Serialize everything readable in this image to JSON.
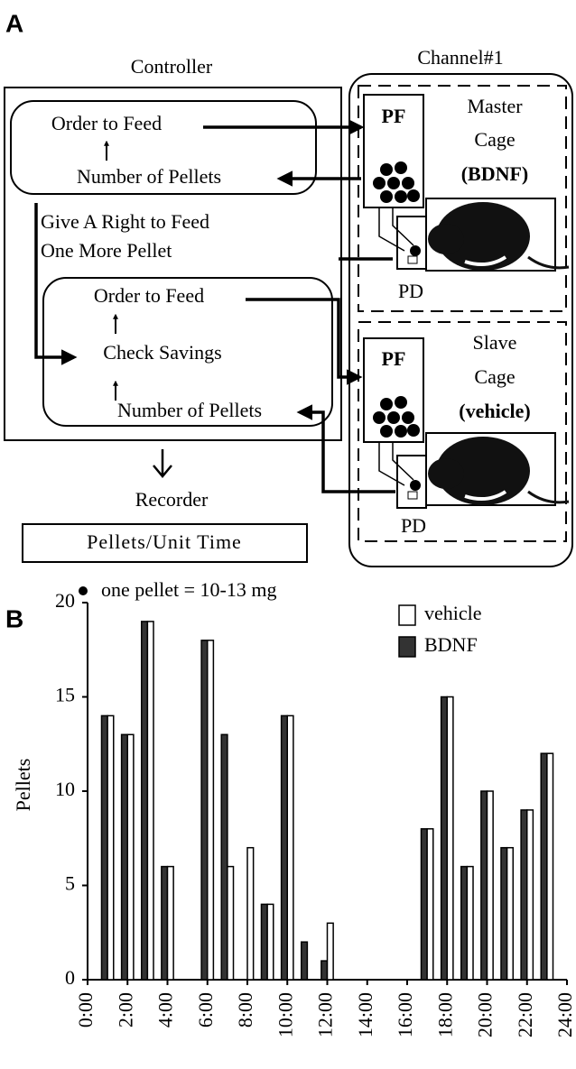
{
  "panel_a": {
    "label": "A",
    "controller": {
      "title": "Controller",
      "order_to_feed": "Order to Feed",
      "number_of_pellets": "Number of Pellets",
      "give_right_line1": "Give A Right to Feed",
      "give_right_line2": "One More Pellet",
      "order_to_feed_2": "Order to Feed",
      "check_savings": "Check Savings",
      "number_of_pellets_2": "Number of Pellets"
    },
    "recorder": {
      "title": "Recorder",
      "box": "Pellets/Unit Time"
    },
    "note": "one pellet = 10-13 mg",
    "channel": {
      "title": "Channel#1",
      "master": {
        "pf": "PF",
        "line1": "Master",
        "line2": "Cage",
        "line3": "(BDNF)",
        "pd": "PD"
      },
      "slave": {
        "pf": "PF",
        "line1": "Slave",
        "line2": "Cage",
        "line3": "(vehicle)",
        "pd": "PD"
      }
    }
  },
  "panel_b_label": "B",
  "chart_data": {
    "type": "bar",
    "y_label": "Pellets",
    "x": [
      1,
      2,
      3,
      4,
      6,
      7,
      8,
      9,
      10,
      11,
      12,
      17,
      18,
      19,
      20,
      21,
      22,
      23
    ],
    "series": [
      {
        "name": "BDNF",
        "color": "#333333",
        "values": [
          14,
          13,
          19,
          6,
          18,
          13,
          0,
          4,
          14,
          2,
          1,
          8,
          15,
          6,
          10,
          7,
          9,
          12
        ]
      },
      {
        "name": "vehicle",
        "color": "#ffffff",
        "values": [
          14,
          13,
          19,
          6,
          18,
          6,
          7,
          4,
          14,
          0,
          3,
          8,
          15,
          6,
          10,
          7,
          9,
          12
        ]
      }
    ],
    "xlim": [
      0,
      24
    ],
    "xticks": [
      {
        "value": 0,
        "label": "0:00"
      },
      {
        "value": 2,
        "label": "2:00"
      },
      {
        "value": 4,
        "label": "4:00"
      },
      {
        "value": 6,
        "label": "6:00"
      },
      {
        "value": 8,
        "label": "8:00"
      },
      {
        "value": 10,
        "label": "10:00"
      },
      {
        "value": 12,
        "label": "12:00"
      },
      {
        "value": 14,
        "label": "14:00"
      },
      {
        "value": 16,
        "label": "16:00"
      },
      {
        "value": 18,
        "label": "18:00"
      },
      {
        "value": 20,
        "label": "20:00"
      },
      {
        "value": 22,
        "label": "22:00"
      },
      {
        "value": 24,
        "label": "24:00"
      }
    ],
    "ylim": [
      0,
      20
    ],
    "yticks": [
      0,
      5,
      10,
      15,
      20
    ],
    "grid": false,
    "legend": "top-right"
  }
}
